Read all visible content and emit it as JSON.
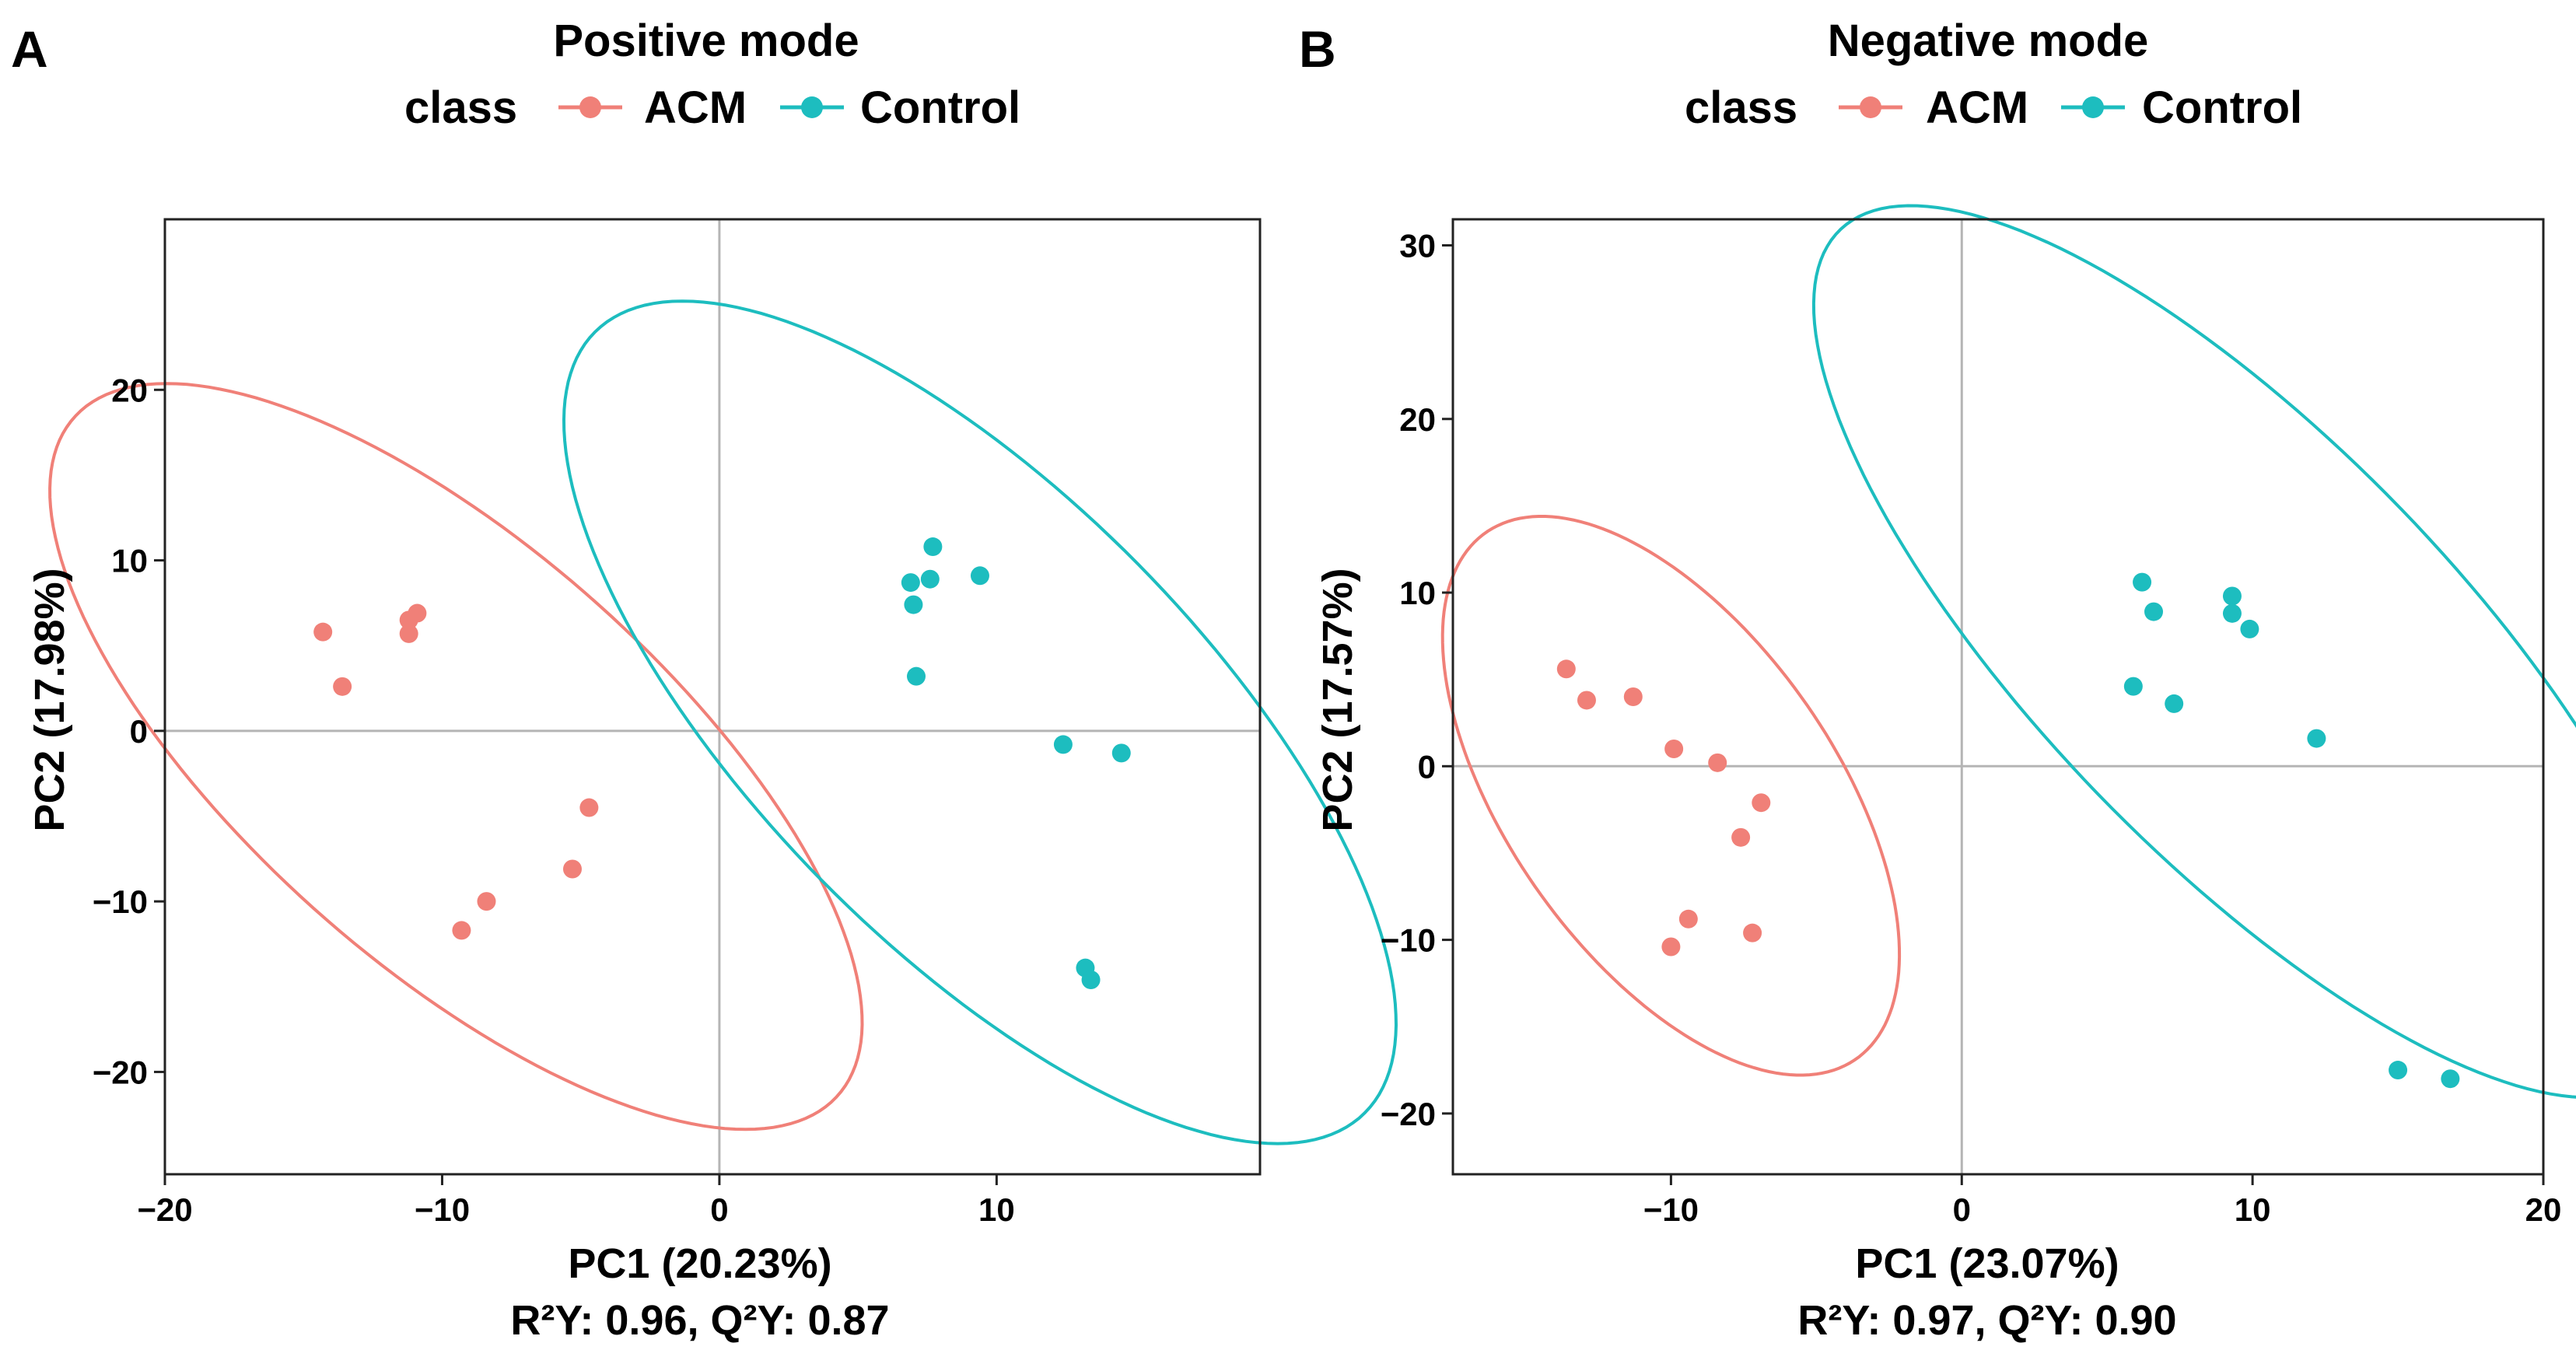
{
  "chart_data": [
    {
      "type": "scatter",
      "panel": "A",
      "title": "Positive mode",
      "legend_title": "class",
      "legend_position": "top",
      "xlabel": "PC1 (20.23%)",
      "ylabel": "PC2 (17.98%)",
      "footer": "R²Y: 0.96, Q²Y: 0.87",
      "xlim": [
        -20,
        19.5
      ],
      "ylim": [
        -26,
        30
      ],
      "xticks": [
        -20,
        -10,
        0,
        10
      ],
      "xtick_labels": [
        "−20",
        "−10",
        "0",
        "10"
      ],
      "yticks": [
        -20,
        -10,
        0,
        10,
        20
      ],
      "ytick_labels": [
        "−20",
        "−10",
        "0",
        "10",
        "20"
      ],
      "series": [
        {
          "name": "ACM",
          "color": "#F08078",
          "points": [
            [
              -14.3,
              5.8
            ],
            [
              -13.6,
              2.6
            ],
            [
              -11.2,
              5.7
            ],
            [
              -11.2,
              6.5
            ],
            [
              -10.9,
              6.9
            ],
            [
              -4.7,
              -4.5
            ],
            [
              -5.3,
              -8.1
            ],
            [
              -8.4,
              -10.0
            ],
            [
              -9.3,
              -11.7
            ]
          ],
          "ellipse": {
            "cx": -9.5,
            "cy": -1.5,
            "rx": 9.1,
            "ry": 24.7,
            "angle_deg": 30
          }
        },
        {
          "name": "Control",
          "color": "#1DBDBF",
          "points": [
            [
              6.9,
              8.7
            ],
            [
              7.0,
              7.4
            ],
            [
              7.6,
              8.9
            ],
            [
              7.7,
              10.8
            ],
            [
              9.4,
              9.1
            ],
            [
              7.1,
              3.2
            ],
            [
              12.4,
              -0.8
            ],
            [
              14.5,
              -1.3
            ],
            [
              13.2,
              -13.9
            ],
            [
              13.4,
              -14.6
            ]
          ],
          "ellipse": {
            "cx": 9.4,
            "cy": 0.5,
            "rx": 9.5,
            "ry": 27.3,
            "angle_deg": 27
          }
        }
      ]
    },
    {
      "type": "scatter",
      "panel": "B",
      "title": "Negative mode",
      "legend_title": "class",
      "legend_position": "top",
      "xlabel": "PC1 (23.07%)",
      "ylabel": "PC2 (17.57%)",
      "footer": "R²Y: 0.97, Q²Y: 0.90",
      "xlim": [
        -17.5,
        20
      ],
      "ylim": [
        -23.5,
        31.5
      ],
      "xticks": [
        -10,
        0,
        10,
        20
      ],
      "xtick_labels": [
        "−10",
        "0",
        "10",
        "20"
      ],
      "yticks": [
        -20,
        -10,
        0,
        10,
        20,
        30
      ],
      "ytick_labels": [
        "−20",
        "−10",
        "0",
        "10",
        "20",
        "30"
      ],
      "series": [
        {
          "name": "ACM",
          "color": "#F08078",
          "points": [
            [
              -13.6,
              5.6
            ],
            [
              -12.9,
              3.8
            ],
            [
              -11.3,
              4.0
            ],
            [
              -9.9,
              1.0
            ],
            [
              -8.4,
              0.2
            ],
            [
              -6.9,
              -2.1
            ],
            [
              -7.6,
              -4.1
            ],
            [
              -9.4,
              -8.8
            ],
            [
              -10.0,
              -10.4
            ],
            [
              -7.2,
              -9.6
            ]
          ],
          "ellipse": {
            "cx": -10.0,
            "cy": -1.7,
            "rx": 6.2,
            "ry": 16.8,
            "angle_deg": 18
          }
        },
        {
          "name": "Control",
          "color": "#1DBDBF",
          "points": [
            [
              6.2,
              10.6
            ],
            [
              6.6,
              8.9
            ],
            [
              9.3,
              9.8
            ],
            [
              9.3,
              8.8
            ],
            [
              9.9,
              7.9
            ],
            [
              5.9,
              4.6
            ],
            [
              7.3,
              3.6
            ],
            [
              12.2,
              1.6
            ],
            [
              15.0,
              -17.5
            ],
            [
              16.8,
              -18.0
            ]
          ],
          "ellipse": {
            "cx": 9.9,
            "cy": 6.6,
            "rx": 8.5,
            "ry": 28.5,
            "angle_deg": 27
          }
        }
      ]
    }
  ]
}
